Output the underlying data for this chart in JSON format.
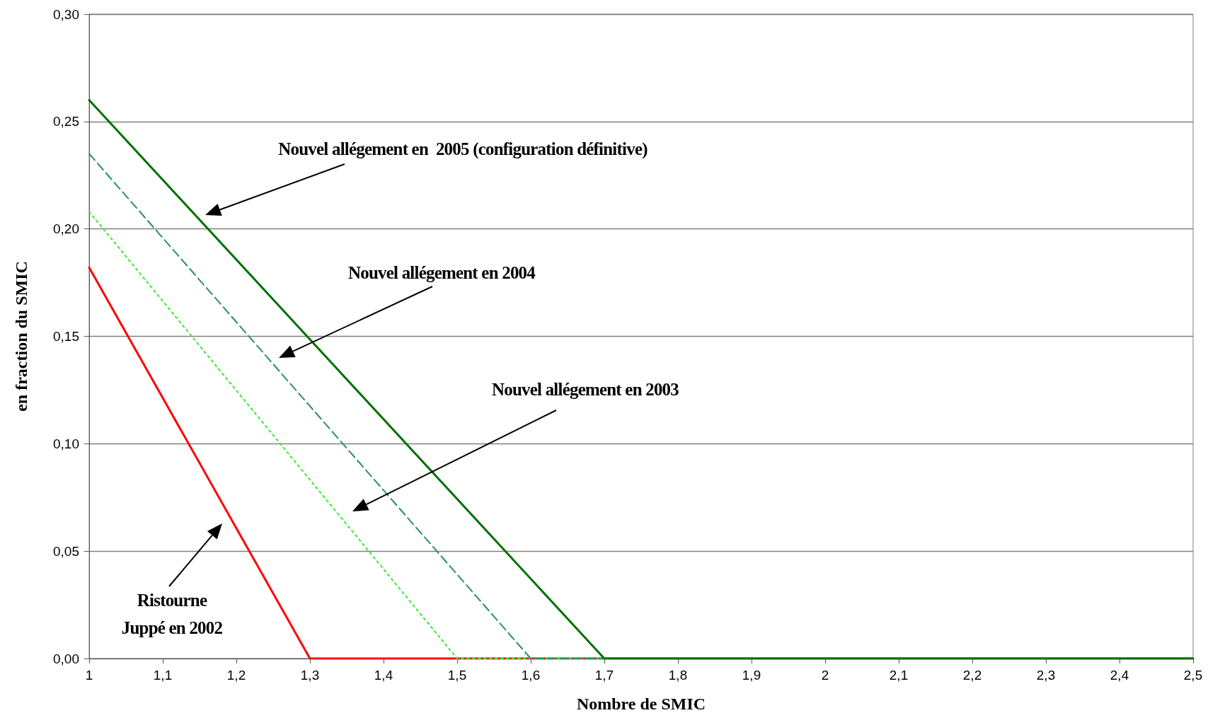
{
  "chart_data": {
    "type": "line",
    "xlabel": "Nombre de SMIC",
    "ylabel": "en fraction du SMIC",
    "xlim": [
      1,
      2.5
    ],
    "xticks": [
      {
        "value": 1,
        "label": "1"
      },
      {
        "value": 1.1,
        "label": "1,1"
      },
      {
        "value": 1.2,
        "label": "1,2"
      },
      {
        "value": 1.3,
        "label": "1,3"
      },
      {
        "value": 1.4,
        "label": "1,4"
      },
      {
        "value": 1.5,
        "label": "1,5"
      },
      {
        "value": 1.6,
        "label": "1,6"
      },
      {
        "value": 1.7,
        "label": "1,7"
      },
      {
        "value": 1.8,
        "label": "1,8"
      },
      {
        "value": 1.9,
        "label": "1,9"
      },
      {
        "value": 2,
        "label": "2"
      },
      {
        "value": 2.1,
        "label": "2,1"
      },
      {
        "value": 2.2,
        "label": "2,2"
      },
      {
        "value": 2.3,
        "label": "2,3"
      },
      {
        "value": 2.4,
        "label": "2,4"
      },
      {
        "value": 2.5,
        "label": "2,5"
      }
    ],
    "ylim": [
      0,
      0.3
    ],
    "yticks": [
      {
        "value": 0,
        "label": "0,00"
      },
      {
        "value": 0.05,
        "label": "0,05"
      },
      {
        "value": 0.1,
        "label": "0,10"
      },
      {
        "value": 0.15,
        "label": "0,15"
      },
      {
        "value": 0.2,
        "label": "0,20"
      },
      {
        "value": 0.25,
        "label": "0,25"
      },
      {
        "value": 0.3,
        "label": "0,30"
      }
    ],
    "grid": "y",
    "marker": "none",
    "series": [
      {
        "color": "#ff0000",
        "line_style": "solid",
        "x": [
          1,
          1.3,
          2.5
        ],
        "values": [
          0.182,
          0,
          0
        ]
      },
      {
        "color": "#33ee33",
        "line_style": "dotted",
        "x": [
          1,
          1.5,
          2.5
        ],
        "values": [
          0.208,
          0,
          0
        ]
      },
      {
        "color": "#2e8b6e",
        "line_style": "dashed",
        "x": [
          1,
          1.6,
          2.5
        ],
        "values": [
          0.235,
          0,
          0
        ]
      },
      {
        "color": "#007000",
        "line_style": "solid",
        "x": [
          1,
          1.7,
          2.5
        ],
        "values": [
          0.26,
          0,
          0
        ]
      }
    ],
    "annotations": [
      "Nouvel allégement en  2005 (configuration définitive)",
      "Nouvel allégement en 2004",
      "Nouvel allégement en 2003",
      "Ristourne\nJuppé en 2002"
    ]
  }
}
